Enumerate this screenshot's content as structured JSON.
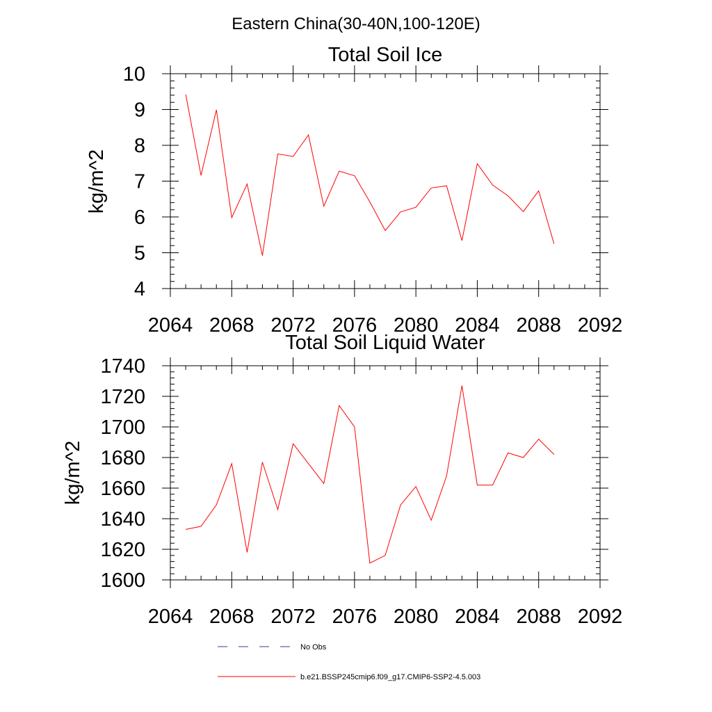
{
  "title": "Eastern China(30-40N,100-120E)",
  "chart_data": [
    {
      "type": "line",
      "title": "Total Soil Ice",
      "ylabel": "kg/m^2",
      "xlabel": "",
      "xlim": [
        2064,
        2092
      ],
      "ylim": [
        4,
        10
      ],
      "x_ticks": [
        2064,
        2068,
        2072,
        2076,
        2080,
        2084,
        2088,
        2092
      ],
      "y_ticks": [
        4,
        5,
        6,
        7,
        8,
        9,
        10
      ],
      "x_tick_labels": [
        "2064",
        "2068",
        "2072",
        "2076",
        "2080",
        "2084",
        "2088",
        "2092"
      ],
      "y_tick_labels": [
        "4",
        "5",
        "6",
        "7",
        "8",
        "9",
        "10"
      ],
      "series": [
        {
          "name": "b.e21.BSSP245cmip6.f09_g17.CMIP6-SSP2-4.5.003",
          "color": "#ff0000",
          "x": [
            2065,
            2066,
            2067,
            2068,
            2069,
            2070,
            2071,
            2072,
            2073,
            2074,
            2075,
            2076,
            2077,
            2078,
            2079,
            2080,
            2081,
            2082,
            2083,
            2084,
            2085,
            2086,
            2087,
            2088,
            2089
          ],
          "y": [
            9.42,
            7.16,
            8.99,
            5.98,
            6.92,
            4.92,
            7.76,
            7.69,
            8.29,
            6.3,
            7.28,
            7.15,
            6.42,
            5.62,
            6.14,
            6.27,
            6.81,
            6.87,
            5.34,
            7.49,
            6.89,
            6.59,
            6.15,
            6.73,
            5.25
          ]
        }
      ]
    },
    {
      "type": "line",
      "title": "Total Soil Liquid Water",
      "ylabel": "kg/m^2",
      "xlabel": "",
      "xlim": [
        2064,
        2092
      ],
      "ylim": [
        1600,
        1740
      ],
      "x_ticks": [
        2064,
        2068,
        2072,
        2076,
        2080,
        2084,
        2088,
        2092
      ],
      "y_ticks": [
        1600,
        1620,
        1640,
        1660,
        1680,
        1700,
        1720,
        1740
      ],
      "x_tick_labels": [
        "2064",
        "2068",
        "2072",
        "2076",
        "2080",
        "2084",
        "2088",
        "2092"
      ],
      "y_tick_labels": [
        "1600",
        "1620",
        "1640",
        "1660",
        "1680",
        "1700",
        "1720",
        "1740"
      ],
      "series": [
        {
          "name": "b.e21.BSSP245cmip6.f09_g17.CMIP6-SSP2-4.5.003",
          "color": "#ff0000",
          "x": [
            2065,
            2066,
            2067,
            2068,
            2069,
            2070,
            2071,
            2072,
            2073,
            2074,
            2075,
            2076,
            2077,
            2078,
            2079,
            2080,
            2081,
            2082,
            2083,
            2084,
            2085,
            2086,
            2087,
            2088,
            2089
          ],
          "y": [
            1633,
            1635,
            1649,
            1676,
            1618,
            1677,
            1646,
            1689,
            1676,
            1663,
            1714,
            1700,
            1611,
            1616,
            1649,
            1661,
            1639,
            1668,
            1727,
            1662,
            1662,
            1683,
            1680,
            1692,
            1682
          ]
        }
      ]
    }
  ],
  "legend": [
    {
      "label": "No Obs",
      "color": "#3a3a8c",
      "style": "dashed"
    },
    {
      "label": "b.e21.BSSP245cmip6.f09_g17.CMIP6-SSP2-4.5.003",
      "color": "#ff0000",
      "style": "solid"
    }
  ]
}
